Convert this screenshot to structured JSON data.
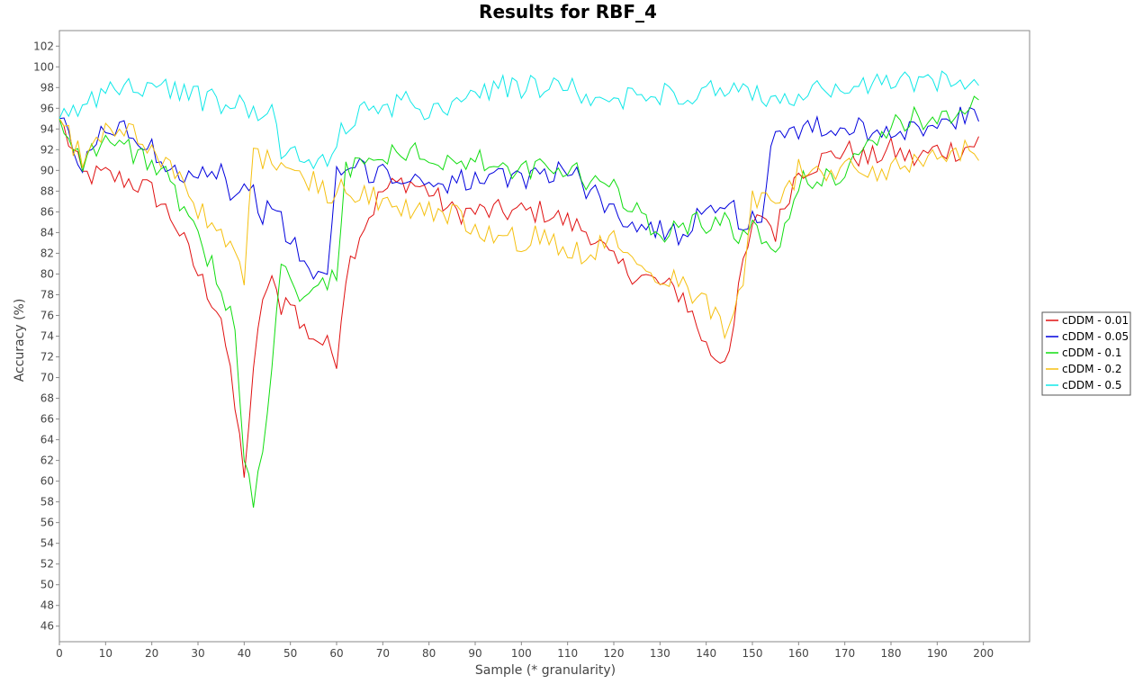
{
  "chart_data": {
    "type": "line",
    "title": "Results for RBF_4",
    "xlabel": "Sample (* granularity)",
    "ylabel": "Accuracy (%)",
    "xlim": [
      0,
      210
    ],
    "ylim": [
      44.5,
      103.5
    ],
    "x_ticks": [
      0,
      10,
      20,
      30,
      40,
      50,
      60,
      70,
      80,
      90,
      100,
      110,
      120,
      130,
      140,
      150,
      160,
      170,
      180,
      190,
      200
    ],
    "y_ticks": [
      46,
      48,
      50,
      52,
      54,
      56,
      58,
      60,
      62,
      64,
      66,
      68,
      70,
      72,
      74,
      76,
      78,
      80,
      82,
      84,
      86,
      88,
      90,
      92,
      94,
      96,
      98,
      100,
      102
    ],
    "grid": false,
    "legend_position": "right",
    "series_keypoints_x": [
      0,
      5,
      10,
      15,
      20,
      25,
      30,
      35,
      38,
      40,
      42,
      44,
      46,
      48,
      50,
      52,
      55,
      58,
      60,
      62,
      65,
      70,
      75,
      80,
      85,
      90,
      95,
      100,
      105,
      110,
      115,
      120,
      125,
      130,
      135,
      140,
      142,
      144,
      146,
      148,
      150,
      152,
      155,
      158,
      160,
      165,
      170,
      175,
      180,
      185,
      190,
      195,
      200
    ],
    "series": [
      {
        "name": "cDDM - 0.01",
        "color": "#e01010",
        "values": [
          95,
          89.5,
          89.5,
          89,
          88,
          85,
          80,
          76,
          67,
          61,
          70,
          78,
          79,
          77,
          78,
          75,
          74,
          73,
          72,
          80,
          84,
          88,
          89,
          88,
          86,
          86,
          86,
          86,
          86,
          85,
          84,
          81,
          80,
          79,
          78,
          73,
          72,
          72,
          75,
          81,
          84,
          86,
          84,
          88,
          90,
          91,
          92,
          91,
          92,
          91,
          92,
          92,
          93
        ]
      },
      {
        "name": "cDDM - 0.05",
        "color": "#0000dd",
        "values": [
          95,
          90,
          94.5,
          93.5,
          92,
          90,
          90,
          90,
          87,
          88,
          88,
          86,
          86,
          85,
          83,
          82,
          80,
          79,
          90,
          90,
          90,
          90,
          89,
          89,
          89,
          89,
          89,
          89,
          90,
          90,
          88,
          86,
          85,
          84,
          84,
          87,
          87,
          86,
          86,
          85,
          85,
          86,
          94,
          94,
          94,
          94,
          94,
          94,
          94,
          94,
          94,
          95,
          95
        ]
      },
      {
        "name": "cDDM - 0.1",
        "color": "#10dd10",
        "values": [
          95,
          91,
          93,
          92,
          91,
          88,
          83,
          79,
          75,
          63,
          58,
          62,
          72,
          80,
          80,
          78,
          78,
          79,
          80,
          90,
          91,
          91,
          92,
          91,
          91,
          91,
          90,
          90,
          90,
          90,
          89,
          88,
          86,
          84,
          85,
          85,
          85,
          85,
          84,
          84,
          84,
          84,
          81,
          86,
          89,
          89,
          90,
          93,
          94,
          95,
          95,
          96,
          96
        ]
      },
      {
        "name": "cDDM - 0.2",
        "color": "#f5c010",
        "values": [
          95,
          91,
          94,
          94,
          92,
          90,
          86,
          84,
          82,
          79,
          93,
          91,
          91,
          90,
          90,
          89,
          89,
          88,
          88,
          88,
          88,
          87,
          86,
          86,
          86,
          84,
          84,
          83,
          84,
          82,
          82,
          84,
          82,
          80,
          79,
          77,
          76,
          74,
          76,
          80,
          87,
          88,
          88,
          88,
          90,
          90,
          90,
          90,
          90,
          91,
          92,
          92,
          92
        ]
      },
      {
        "name": "cDDM - 0.5",
        "color": "#10e8e8",
        "values": [
          95,
          96,
          98,
          98,
          98,
          98,
          97,
          96.5,
          96.5,
          96,
          96,
          96,
          96,
          92,
          92,
          91,
          91,
          91,
          93,
          94,
          95.5,
          96,
          96.5,
          96,
          96.5,
          98,
          98,
          98,
          98,
          98,
          97,
          97,
          97,
          97.5,
          97.5,
          97.5,
          97.5,
          97.5,
          97.5,
          97.5,
          97.5,
          97,
          97,
          97,
          97.5,
          97.5,
          98,
          98,
          98.5,
          98.5,
          98.5,
          99,
          99
        ]
      }
    ]
  }
}
